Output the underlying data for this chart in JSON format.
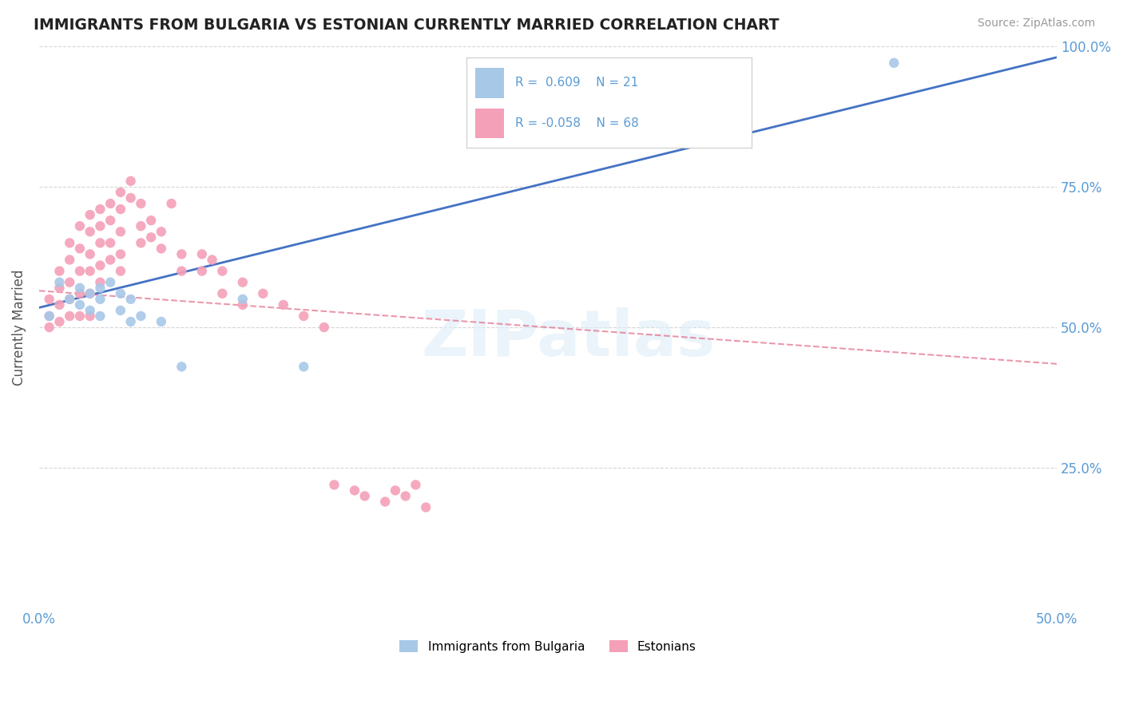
{
  "title": "IMMIGRANTS FROM BULGARIA VS ESTONIAN CURRENTLY MARRIED CORRELATION CHART",
  "source": "Source: ZipAtlas.com",
  "ylabel": "Currently Married",
  "xlim": [
    0.0,
    0.5
  ],
  "ylim": [
    0.0,
    1.0
  ],
  "xticks": [
    0.0,
    0.05,
    0.1,
    0.15,
    0.2,
    0.25,
    0.3,
    0.35,
    0.4,
    0.45,
    0.5
  ],
  "xtick_labels": [
    "0.0%",
    "",
    "",
    "",
    "",
    "",
    "",
    "",
    "",
    "",
    "50.0%"
  ],
  "yticks": [
    0.0,
    0.25,
    0.5,
    0.75,
    1.0
  ],
  "ytick_labels_right": [
    "",
    "25.0%",
    "50.0%",
    "75.0%",
    "100.0%"
  ],
  "blue_color": "#a8c8e8",
  "pink_color": "#f4a0b8",
  "trend_blue_color": "#4472c4",
  "trend_pink_color": "#e06080",
  "axis_color": "#5b9bd5",
  "grid_color": "#cccccc",
  "watermark": "ZIPatlas",
  "blue_scatter_x": [
    0.005,
    0.01,
    0.015,
    0.02,
    0.02,
    0.025,
    0.025,
    0.03,
    0.03,
    0.03,
    0.035,
    0.04,
    0.04,
    0.045,
    0.045,
    0.05,
    0.06,
    0.07,
    0.1,
    0.13,
    0.42
  ],
  "blue_scatter_y": [
    0.52,
    0.58,
    0.55,
    0.57,
    0.54,
    0.56,
    0.53,
    0.57,
    0.55,
    0.52,
    0.58,
    0.56,
    0.53,
    0.55,
    0.51,
    0.52,
    0.51,
    0.43,
    0.55,
    0.43,
    0.97
  ],
  "pink_scatter_x": [
    0.005,
    0.005,
    0.005,
    0.01,
    0.01,
    0.01,
    0.01,
    0.015,
    0.015,
    0.015,
    0.015,
    0.015,
    0.02,
    0.02,
    0.02,
    0.02,
    0.02,
    0.025,
    0.025,
    0.025,
    0.025,
    0.025,
    0.025,
    0.03,
    0.03,
    0.03,
    0.03,
    0.03,
    0.035,
    0.035,
    0.035,
    0.035,
    0.04,
    0.04,
    0.04,
    0.04,
    0.04,
    0.045,
    0.045,
    0.05,
    0.05,
    0.05,
    0.055,
    0.055,
    0.06,
    0.06,
    0.065,
    0.07,
    0.07,
    0.08,
    0.08,
    0.085,
    0.09,
    0.09,
    0.1,
    0.1,
    0.11,
    0.12,
    0.13,
    0.14,
    0.145,
    0.155,
    0.16,
    0.17,
    0.175,
    0.18,
    0.185,
    0.19
  ],
  "pink_scatter_y": [
    0.55,
    0.52,
    0.5,
    0.6,
    0.57,
    0.54,
    0.51,
    0.65,
    0.62,
    0.58,
    0.55,
    0.52,
    0.68,
    0.64,
    0.6,
    0.56,
    0.52,
    0.7,
    0.67,
    0.63,
    0.6,
    0.56,
    0.52,
    0.71,
    0.68,
    0.65,
    0.61,
    0.58,
    0.72,
    0.69,
    0.65,
    0.62,
    0.74,
    0.71,
    0.67,
    0.63,
    0.6,
    0.76,
    0.73,
    0.72,
    0.68,
    0.65,
    0.69,
    0.66,
    0.67,
    0.64,
    0.72,
    0.63,
    0.6,
    0.63,
    0.6,
    0.62,
    0.6,
    0.56,
    0.58,
    0.54,
    0.56,
    0.54,
    0.52,
    0.5,
    0.22,
    0.21,
    0.2,
    0.19,
    0.21,
    0.2,
    0.22,
    0.18
  ],
  "blue_trend_x": [
    0.0,
    0.5
  ],
  "blue_trend_y": [
    0.535,
    0.98
  ],
  "pink_trend_x": [
    0.0,
    0.5
  ],
  "pink_trend_y": [
    0.565,
    0.435
  ]
}
